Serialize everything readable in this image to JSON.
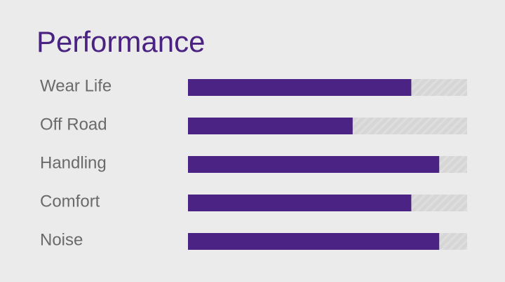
{
  "chart_data": {
    "type": "bar",
    "orientation": "horizontal",
    "title": "Performance",
    "categories": [
      "Wear Life",
      "Off Road",
      "Handling",
      "Comfort",
      "Noise"
    ],
    "values": [
      80,
      59,
      90,
      80,
      90
    ],
    "color": "#4b2384",
    "xlim": [
      0,
      100
    ]
  }
}
